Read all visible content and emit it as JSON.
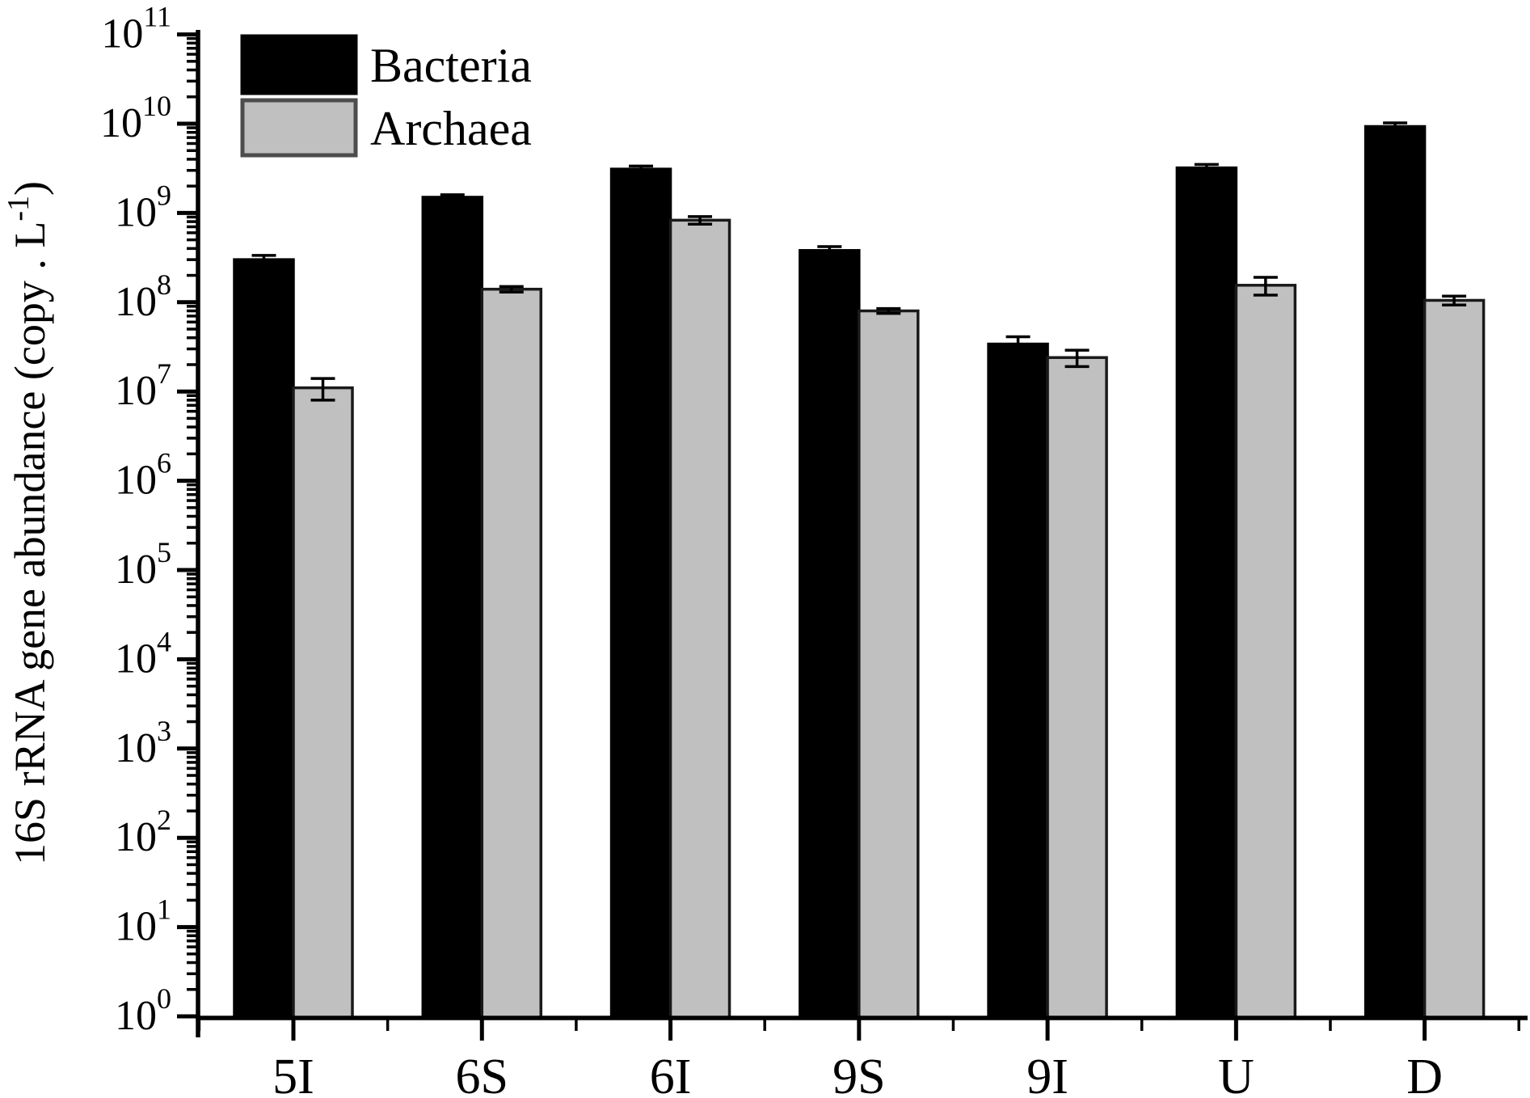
{
  "figure": {
    "kind": "scientific bar chart figure",
    "background": "#ffffff"
  },
  "chart_data": {
    "type": "bar",
    "title": "",
    "xlabel": "",
    "ylabel": "16S rRNA gene abundance (copy . L⁻¹)",
    "ylabel_parts": {
      "main": "16S rRNA gene abundance (copy . L",
      "sup": "-1",
      "tail": ")"
    },
    "y_scale": "log10",
    "ylim": [
      1.0,
      100000000000.0
    ],
    "y_tick_base": "10",
    "y_tick_exponents": [
      0,
      1,
      2,
      3,
      4,
      5,
      6,
      7,
      8,
      9,
      10,
      11
    ],
    "grid": false,
    "axis_color": "#000000",
    "error_color": "#000000",
    "categories": [
      "5I",
      "6S",
      "6I",
      "9S",
      "9I",
      "U",
      "D"
    ],
    "series": [
      {
        "name": "Bacteria",
        "fill": "#000000",
        "stroke": "#000000",
        "values": [
          300000000.0,
          1500000000.0,
          3100000000.0,
          380000000.0,
          34000000.0,
          3200000000.0,
          9300000000.0
        ],
        "errors_plus": [
          35000000.0,
          100000000.0,
          250000000.0,
          40000000.0,
          7000000.0,
          300000000.0,
          900000000.0
        ]
      },
      {
        "name": "Archaea",
        "fill": "#c0c0c0",
        "stroke": "#1a1a1a",
        "values": [
          11000000.0,
          140000000.0,
          830000000.0,
          80000000.0,
          24000000.0,
          155000000.0,
          105000000.0
        ],
        "errors_plus": [
          3000000.0,
          10000000.0,
          80000000.0,
          5000000.0,
          5000000.0,
          35000000.0,
          12000000.0
        ]
      }
    ],
    "legend": {
      "position": "top-left",
      "items": [
        {
          "label": "Bacteria",
          "swatch_fill": "#000000",
          "swatch_border": "#000000"
        },
        {
          "label": "Archaea",
          "swatch_fill": "#c0c0c0",
          "swatch_border": "#4d4d4d"
        }
      ]
    }
  }
}
